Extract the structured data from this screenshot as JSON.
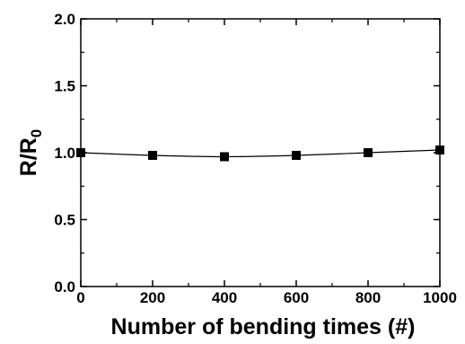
{
  "chart_data": {
    "type": "line",
    "title": "",
    "xlabel": "Number of bending times (#)",
    "ylabel": "R/R",
    "ylabel_subscript": "0",
    "xlim": [
      0,
      1000
    ],
    "ylim": [
      0.0,
      2.0
    ],
    "x_ticks": [
      0,
      200,
      400,
      600,
      800,
      1000
    ],
    "y_ticks": [
      0.0,
      0.5,
      1.0,
      1.5,
      2.0
    ],
    "x_tick_labels": [
      "0",
      "200",
      "400",
      "600",
      "800",
      "1000"
    ],
    "y_tick_labels": [
      "0.0",
      "0.5",
      "1.0",
      "1.5",
      "2.0"
    ],
    "grid": false,
    "series": [
      {
        "x": [
          0,
          200,
          400,
          600,
          800,
          1000
        ],
        "values": [
          1.0,
          0.98,
          0.97,
          0.98,
          1.0,
          1.02
        ],
        "marker": "square",
        "color": "#000000"
      }
    ]
  }
}
